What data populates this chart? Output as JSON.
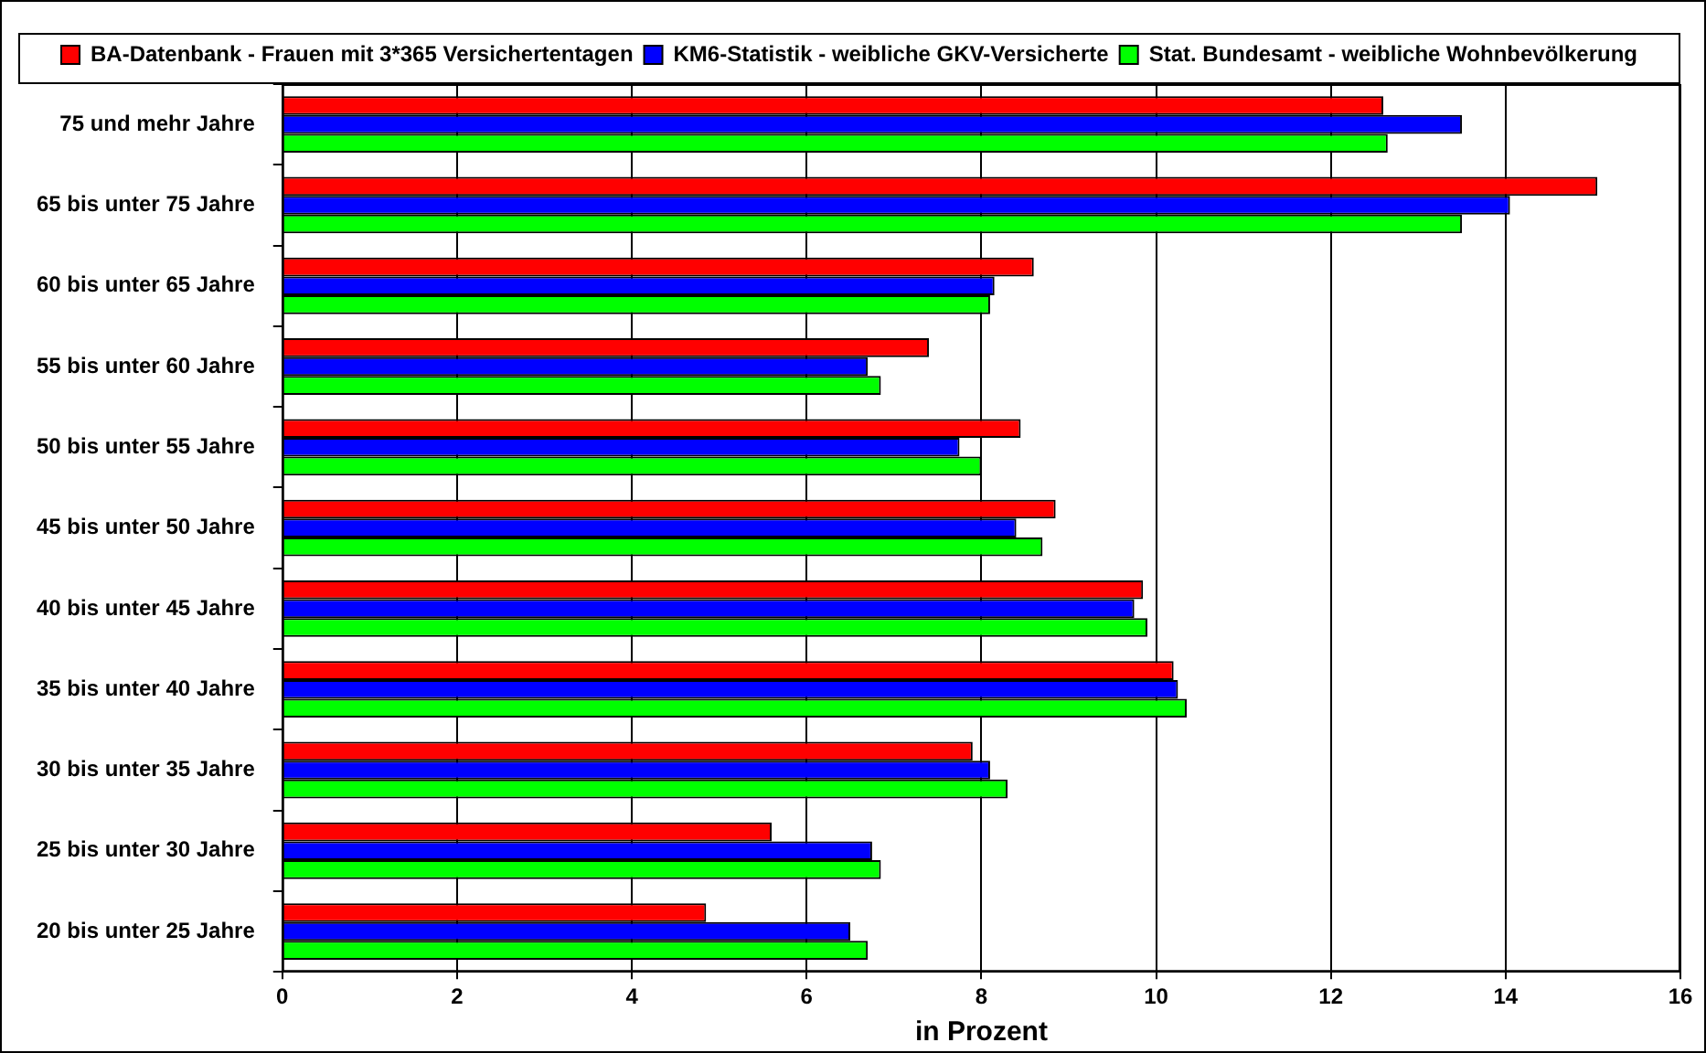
{
  "chart_data": {
    "type": "bar",
    "orientation": "horizontal",
    "xlabel": "in Prozent",
    "categories": [
      "75 und mehr Jahre",
      "65 bis unter 75 Jahre",
      "60 bis unter 65 Jahre",
      "55 bis unter 60 Jahre",
      "50 bis unter 55 Jahre",
      "45 bis unter 50 Jahre",
      "40 bis unter 45 Jahre",
      "35 bis unter 40 Jahre",
      "30 bis unter 35 Jahre",
      "25 bis unter 30 Jahre",
      "20 bis unter 25 Jahre"
    ],
    "series": [
      {
        "name": "BA-Datenbank - Frauen mit 3*365 Versichertentagen",
        "color": "#ff0000",
        "values": [
          12.6,
          15.05,
          8.6,
          7.4,
          8.45,
          8.85,
          9.85,
          10.2,
          7.9,
          5.6,
          4.85
        ]
      },
      {
        "name": "KM6-Statistik - weibliche GKV-Versicherte",
        "color": "#0000ff",
        "values": [
          13.5,
          14.05,
          8.15,
          6.7,
          7.75,
          8.4,
          9.75,
          10.25,
          8.1,
          6.75,
          6.5
        ]
      },
      {
        "name": "Stat. Bundesamt - weibliche Wohnbevölkerung",
        "color": "#00ff00",
        "values": [
          12.65,
          13.5,
          8.1,
          6.85,
          8.0,
          8.7,
          9.9,
          10.35,
          8.3,
          6.85,
          6.7
        ]
      }
    ],
    "xlim": [
      0,
      16
    ],
    "xticks": [
      0,
      2,
      4,
      6,
      8,
      10,
      12,
      14,
      16
    ],
    "grid": "x",
    "legend": "top"
  }
}
